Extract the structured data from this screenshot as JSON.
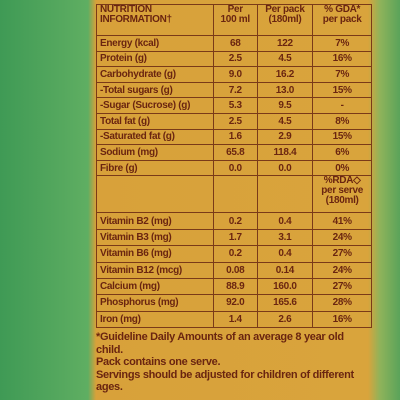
{
  "table": {
    "header": [
      "NUTRITION\nINFORMATION†",
      "Per\n100 ml",
      "Per pack\n(180ml)",
      "% GDA*\nper pack"
    ],
    "rows": [
      [
        "Energy (kcal)",
        "68",
        "122",
        "7%"
      ],
      [
        "Protein (g)",
        "2.5",
        "4.5",
        "16%"
      ],
      [
        "Carbohydrate (g)",
        "9.0",
        "16.2",
        "7%"
      ],
      [
        "-Total sugars (g)",
        "7.2",
        "13.0",
        "15%"
      ],
      [
        "-Sugar (Sucrose) (g)",
        "5.3",
        "9.5",
        "-"
      ],
      [
        "Total fat (g)",
        "2.5",
        "4.5",
        "8%"
      ],
      [
        "-Saturated fat (g)",
        "1.6",
        "2.9",
        "15%"
      ],
      [
        "Sodium (mg)",
        "65.8",
        "118.4",
        "6%"
      ],
      [
        "Fibre (g)",
        "0.0",
        "0.0",
        "0%"
      ]
    ],
    "rda_header": "%RDA◇\nper serve\n(180ml)",
    "rda_rows": [
      [
        "Vitamin B2 (mg)",
        "0.2",
        "0.4",
        "41%"
      ],
      [
        "Vitamin B3 (mg)",
        "1.7",
        "3.1",
        "24%"
      ],
      [
        "Vitamin B6 (mg)",
        "0.2",
        "0.4",
        "27%"
      ],
      [
        "Vitamin B12 (mcg)",
        "0.08",
        "0.14",
        "24%"
      ],
      [
        "Calcium (mg)",
        "88.9",
        "160.0",
        "27%"
      ],
      [
        "Phosphorus (mg)",
        "92.0",
        "165.6",
        "28%"
      ],
      [
        "Iron (mg)",
        "1.4",
        "2.6",
        "16%"
      ]
    ]
  },
  "footnotes": [
    "*Guideline Daily Amounts of an average 8 year old child.",
    "Pack contains one serve.",
    "Servings should be adjusted for children of different ages."
  ]
}
